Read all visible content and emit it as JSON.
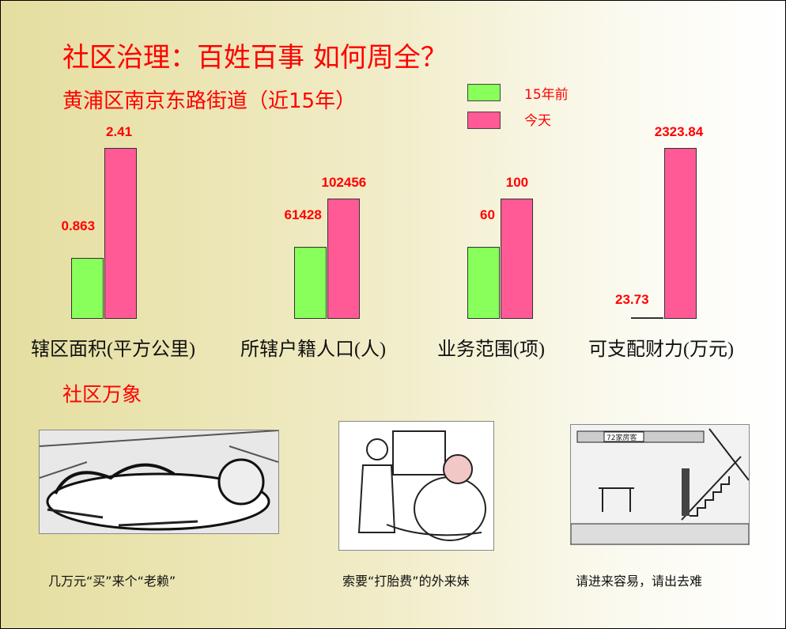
{
  "title": "社区治理：百姓百事 如何周全？",
  "subtitle": "黄浦区南京东路街道（近15年）",
  "chart_data": {
    "type": "bar",
    "categories": [
      "辖区面积(平方公里)",
      "所辖户籍人口(人)",
      "业务范围(项)",
      "可支配财力(万元)"
    ],
    "series": [
      {
        "name": "15年前",
        "values": [
          0.863,
          61428,
          60,
          23.73
        ],
        "labels": [
          "0.863",
          "61428",
          "60",
          "23.73"
        ],
        "color": "#88ff5a"
      },
      {
        "name": "今天",
        "values": [
          2.41,
          102456,
          100,
          2323.84
        ],
        "labels": [
          "2.41",
          "102456",
          "100",
          "2323.84"
        ],
        "color": "#ff5a96"
      }
    ],
    "legend": "top-right",
    "grid": false,
    "yaxis": "none"
  },
  "section_title": "社区万象",
  "pictures": [
    {
      "icon": "cartoon-lazy-man",
      "caption": "几万元“买”来个“老赖”"
    },
    {
      "icon": "cartoon-doctor-patient",
      "caption": "索要“打胎费”的外来妹"
    },
    {
      "icon": "cartoon-72-tenants-house",
      "caption": "请进来容易，请出去难",
      "sign": "72家房客"
    }
  ]
}
